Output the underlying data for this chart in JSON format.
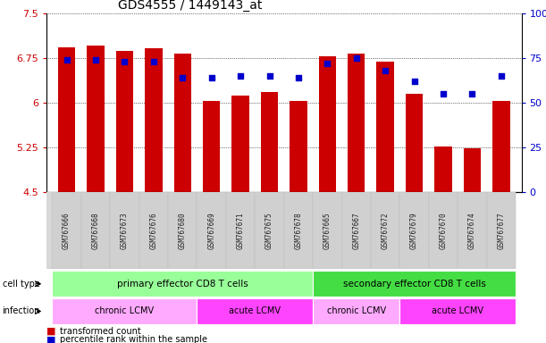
{
  "title": "GDS4555 / 1449143_at",
  "samples": [
    "GSM767666",
    "GSM767668",
    "GSM767673",
    "GSM767676",
    "GSM767680",
    "GSM767669",
    "GSM767671",
    "GSM767675",
    "GSM767678",
    "GSM767665",
    "GSM767667",
    "GSM767672",
    "GSM767679",
    "GSM767670",
    "GSM767674",
    "GSM767677"
  ],
  "bar_values": [
    6.93,
    6.97,
    6.87,
    6.92,
    6.83,
    6.03,
    6.12,
    6.18,
    6.03,
    6.79,
    6.83,
    6.69,
    6.15,
    5.26,
    5.23,
    6.04
  ],
  "percentile_values": [
    74,
    74,
    73,
    73,
    64,
    64,
    65,
    65,
    64,
    72,
    75,
    68,
    62,
    55,
    55,
    65
  ],
  "bar_color": "#cc0000",
  "percentile_color": "#0000cc",
  "ylim_left": [
    4.5,
    7.5
  ],
  "ylim_right": [
    0,
    100
  ],
  "yticks_left": [
    4.5,
    5.25,
    6.0,
    6.75,
    7.5
  ],
  "yticks_right": [
    0,
    25,
    50,
    75,
    100
  ],
  "ytick_labels_left": [
    "4.5",
    "5.25",
    "6",
    "6.75",
    "7.5"
  ],
  "ytick_labels_right": [
    "0",
    "25",
    "50",
    "75",
    "100%"
  ],
  "cell_type_groups": [
    {
      "label": "primary effector CD8 T cells",
      "start": 0,
      "end": 9,
      "color": "#99ff99"
    },
    {
      "label": "secondary effector CD8 T cells",
      "start": 9,
      "end": 16,
      "color": "#44dd44"
    }
  ],
  "infection_groups": [
    {
      "label": "chronic LCMV",
      "start": 0,
      "end": 5,
      "color": "#ffaaff"
    },
    {
      "label": "acute LCMV",
      "start": 5,
      "end": 9,
      "color": "#ff44ff"
    },
    {
      "label": "chronic LCMV",
      "start": 9,
      "end": 12,
      "color": "#ffaaff"
    },
    {
      "label": "acute LCMV",
      "start": 12,
      "end": 16,
      "color": "#ff44ff"
    }
  ],
  "bg_color": "#ffffff",
  "plot_bg_color": "#ffffff",
  "legend_items": [
    {
      "label": "transformed count",
      "color": "#cc0000"
    },
    {
      "label": "percentile rank within the sample",
      "color": "#0000cc"
    }
  ]
}
